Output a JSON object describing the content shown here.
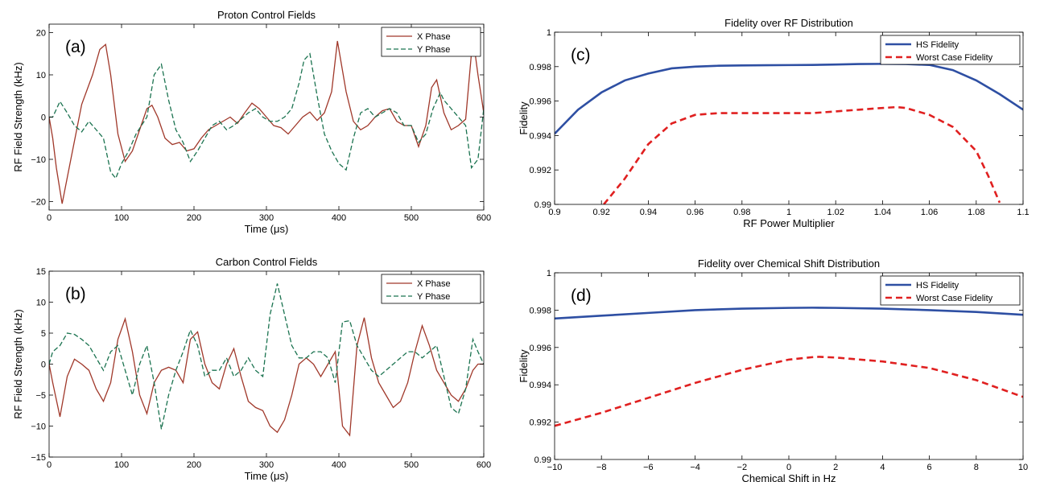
{
  "chart_data": [
    {
      "id": "a",
      "type": "line",
      "panel_label": "(a)",
      "title": "Proton Control Fields",
      "xlabel": "Time (μs)",
      "ylabel": "RF Field Strength (kHz)",
      "xlim": [
        0,
        600
      ],
      "ylim": [
        -22,
        22
      ],
      "xticks": [
        0,
        100,
        200,
        300,
        400,
        500,
        600
      ],
      "yticks": [
        -20,
        -10,
        0,
        10,
        20
      ],
      "legend_position": "top-right",
      "series": [
        {
          "name": "X Phase",
          "color": "#a0382a",
          "style": "solid",
          "x": [
            0,
            5,
            10,
            18,
            30,
            45,
            60,
            70,
            78,
            85,
            95,
            105,
            115,
            125,
            135,
            142,
            150,
            160,
            170,
            180,
            190,
            200,
            210,
            220,
            230,
            240,
            250,
            260,
            270,
            280,
            290,
            300,
            310,
            320,
            330,
            340,
            350,
            360,
            370,
            380,
            390,
            398,
            410,
            420,
            430,
            440,
            450,
            460,
            470,
            480,
            490,
            500,
            510,
            520,
            528,
            535,
            545,
            555,
            565,
            575,
            585,
            592,
            600
          ],
          "y": [
            0,
            -5,
            -12,
            -20.5,
            -10,
            3,
            10,
            16,
            17.2,
            10,
            -4,
            -10.5,
            -8,
            -3,
            2,
            2.8,
            0,
            -5,
            -6.5,
            -6,
            -8,
            -7.5,
            -5,
            -3,
            -2,
            -1,
            0,
            -1.5,
            1,
            3.3,
            2,
            0,
            -2,
            -2.5,
            -4,
            -2,
            0,
            1.2,
            -0.8,
            1,
            6,
            18,
            6,
            -1,
            -3,
            -2,
            0,
            1.5,
            2,
            -1,
            -2,
            -2,
            -7,
            -2,
            7,
            8.8,
            1,
            -3,
            -2,
            -0.5,
            19,
            10,
            1
          ]
        },
        {
          "name": "Y Phase",
          "color": "#1b7350",
          "style": "dashed",
          "x": [
            0,
            5,
            15,
            25,
            35,
            45,
            55,
            65,
            75,
            85,
            92,
            100,
            110,
            120,
            135,
            145,
            155,
            165,
            175,
            185,
            195,
            205,
            215,
            225,
            235,
            245,
            255,
            265,
            275,
            285,
            295,
            305,
            315,
            325,
            335,
            345,
            352,
            360,
            370,
            380,
            390,
            400,
            410,
            420,
            430,
            440,
            450,
            460,
            470,
            480,
            490,
            500,
            510,
            520,
            530,
            540,
            545,
            555,
            565,
            575,
            583,
            592,
            600
          ],
          "y": [
            0,
            0,
            3.7,
            1,
            -2,
            -3.5,
            -1,
            -3,
            -5,
            -13,
            -14.5,
            -11,
            -8,
            -4,
            0,
            10,
            12.5,
            4,
            -3,
            -6,
            -10.5,
            -8,
            -5,
            -2,
            -1,
            -3,
            -2,
            -0.5,
            1,
            2,
            0,
            -1,
            -1,
            0,
            2,
            8,
            13.5,
            15,
            5,
            -4,
            -8,
            -11,
            -12.5,
            -5,
            1,
            2,
            0,
            1,
            2,
            1,
            -2,
            -2,
            -6,
            -4,
            2,
            5.8,
            4,
            2,
            0,
            -2,
            -12,
            -10,
            2
          ]
        }
      ]
    },
    {
      "id": "b",
      "type": "line",
      "panel_label": "(b)",
      "title": "Carbon Control Fields",
      "xlabel": "Time (μs)",
      "ylabel": "RF Field Strength (kHz)",
      "xlim": [
        0,
        600
      ],
      "ylim": [
        -15,
        15
      ],
      "xticks": [
        0,
        100,
        200,
        300,
        400,
        500,
        600
      ],
      "yticks": [
        -15,
        -10,
        -5,
        0,
        5,
        10,
        15
      ],
      "legend_position": "top-right",
      "series": [
        {
          "name": "X Phase",
          "color": "#a0382a",
          "style": "solid",
          "x": [
            0,
            5,
            15,
            25,
            35,
            45,
            55,
            65,
            75,
            85,
            95,
            105,
            115,
            125,
            135,
            145,
            155,
            165,
            175,
            185,
            195,
            205,
            215,
            225,
            235,
            245,
            255,
            265,
            275,
            285,
            295,
            305,
            315,
            325,
            335,
            345,
            355,
            365,
            375,
            385,
            395,
            405,
            415,
            425,
            435,
            445,
            455,
            465,
            475,
            485,
            495,
            505,
            515,
            525,
            535,
            545,
            555,
            565,
            575,
            585,
            592,
            600
          ],
          "y": [
            0,
            -3,
            -8.5,
            -2,
            0.8,
            0,
            -1,
            -4,
            -6,
            -3,
            4,
            7.3,
            2,
            -5,
            -8,
            -3,
            -1,
            -0.5,
            -1,
            -3,
            4,
            5.2,
            0,
            -3,
            -4,
            0,
            2.5,
            -2,
            -6,
            -7,
            -7.5,
            -10,
            -11,
            -9,
            -5,
            0,
            1,
            0,
            -2,
            0,
            2,
            -10,
            -11.5,
            3,
            7.5,
            1,
            -3,
            -5,
            -7,
            -6,
            -3,
            2,
            6.2,
            3,
            -1,
            -3,
            -5,
            -6,
            -4,
            -1,
            0,
            0
          ]
        },
        {
          "name": "Y Phase",
          "color": "#1b7350",
          "style": "dashed",
          "x": [
            0,
            5,
            15,
            25,
            35,
            45,
            55,
            65,
            75,
            85,
            95,
            105,
            115,
            125,
            135,
            145,
            155,
            165,
            175,
            185,
            195,
            205,
            215,
            225,
            235,
            245,
            255,
            265,
            275,
            285,
            295,
            305,
            315,
            325,
            335,
            345,
            355,
            365,
            375,
            385,
            395,
            405,
            415,
            425,
            435,
            445,
            455,
            465,
            475,
            485,
            495,
            505,
            515,
            525,
            535,
            545,
            555,
            565,
            575,
            585,
            592,
            600
          ],
          "y": [
            0,
            2,
            3,
            5,
            4.8,
            4,
            3,
            1,
            -1,
            2,
            3,
            -1,
            -5,
            0,
            3,
            -3,
            -10.5,
            -5,
            -1,
            2,
            5.5,
            3,
            -2,
            -1,
            -1,
            1,
            -2,
            -1,
            1,
            -1,
            -2,
            8,
            13,
            8,
            3,
            1,
            1,
            2,
            2,
            1,
            -3,
            6.8,
            7,
            3,
            1,
            -1,
            -2,
            -1,
            0,
            1,
            2,
            2,
            1,
            2,
            3,
            -2,
            -7,
            -8,
            -4,
            4,
            2,
            0
          ]
        }
      ]
    },
    {
      "id": "c",
      "type": "line",
      "panel_label": "(c)",
      "title": "Fidelity over RF Distribution",
      "xlabel": "RF Power Multiplier",
      "ylabel": "Fidelity",
      "xlim": [
        0.9,
        1.1
      ],
      "ylim": [
        0.99,
        1
      ],
      "xticks": [
        0.9,
        0.92,
        0.94,
        0.96,
        0.98,
        1,
        1.02,
        1.04,
        1.06,
        1.08,
        1.1
      ],
      "yticks": [
        0.99,
        0.992,
        0.994,
        0.996,
        0.998,
        1
      ],
      "legend_position": "top-right",
      "series": [
        {
          "name": "HS Fidelity",
          "color": "#2e4fa3",
          "style": "solid",
          "x": [
            0.9,
            0.91,
            0.92,
            0.93,
            0.94,
            0.95,
            0.96,
            0.97,
            0.98,
            0.99,
            1.0,
            1.01,
            1.02,
            1.03,
            1.04,
            1.05,
            1.06,
            1.07,
            1.08,
            1.09,
            1.1
          ],
          "y": [
            0.9941,
            0.9955,
            0.9965,
            0.9972,
            0.9976,
            0.9979,
            0.998,
            0.99805,
            0.99807,
            0.99808,
            0.99809,
            0.9981,
            0.99812,
            0.99815,
            0.99816,
            0.99815,
            0.9981,
            0.9978,
            0.9972,
            0.9964,
            0.9955
          ]
        },
        {
          "name": "Worst Case Fidelity",
          "color": "#e02020",
          "style": "dashed",
          "x": [
            0.921,
            0.93,
            0.94,
            0.95,
            0.96,
            0.97,
            0.98,
            0.99,
            1.0,
            1.01,
            1.02,
            1.03,
            1.04,
            1.046,
            1.05,
            1.06,
            1.07,
            1.08,
            1.085,
            1.09
          ],
          "y": [
            0.99,
            0.9915,
            0.9935,
            0.9947,
            0.9952,
            0.9953,
            0.9953,
            0.9953,
            0.9953,
            0.9953,
            0.9954,
            0.9955,
            0.9956,
            0.99565,
            0.9956,
            0.9952,
            0.9945,
            0.9931,
            0.9917,
            0.9901
          ]
        }
      ]
    },
    {
      "id": "d",
      "type": "line",
      "panel_label": "(d)",
      "title": "Fidelity over Chemical Shift Distribution",
      "xlabel": "Chemical Shift in Hz",
      "ylabel": "Fidelity",
      "xlim": [
        -10,
        10
      ],
      "ylim": [
        0.99,
        1
      ],
      "xticks": [
        -10,
        -8,
        -6,
        -4,
        -2,
        0,
        2,
        4,
        6,
        8,
        10
      ],
      "yticks": [
        0.99,
        0.992,
        0.994,
        0.996,
        0.998,
        1
      ],
      "legend_position": "top-right",
      "series": [
        {
          "name": "HS Fidelity",
          "color": "#2e4fa3",
          "style": "solid",
          "x": [
            -10,
            -8,
            -6,
            -4,
            -2,
            0,
            1,
            2,
            4,
            6,
            8,
            10
          ],
          "y": [
            0.99755,
            0.9977,
            0.99785,
            0.998,
            0.99808,
            0.99812,
            0.99813,
            0.99812,
            0.99808,
            0.998,
            0.9979,
            0.99775
          ]
        },
        {
          "name": "Worst Case Fidelity",
          "color": "#e02020",
          "style": "dashed",
          "x": [
            -10,
            -8,
            -6,
            -4,
            -2,
            0,
            1,
            1.3,
            2,
            4,
            6,
            8,
            10
          ],
          "y": [
            0.9918,
            0.9925,
            0.9933,
            0.9941,
            0.9948,
            0.99535,
            0.99548,
            0.9955,
            0.99546,
            0.99525,
            0.9949,
            0.99425,
            0.99335
          ]
        }
      ]
    }
  ]
}
